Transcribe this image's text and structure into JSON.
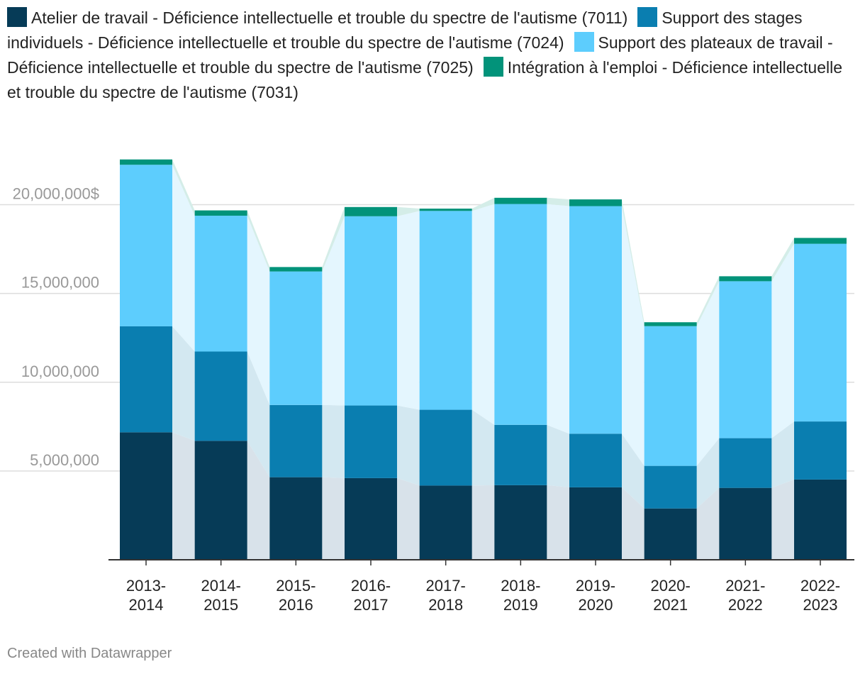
{
  "chart_data": {
    "type": "bar",
    "stacked": true,
    "categories": [
      "2013-2014",
      "2014-2015",
      "2015-2016",
      "2016-2017",
      "2017-2018",
      "2018-2019",
      "2019-2020",
      "2020-2021",
      "2021-2022",
      "2022-2023"
    ],
    "series": [
      {
        "name": "Atelier de travail - Déficience intellectuelle et trouble du spectre de l'autisme (7011)",
        "color": "#063b57",
        "values": [
          7180000,
          6700000,
          4650000,
          4600000,
          4180000,
          4200000,
          4080000,
          2890000,
          4050000,
          4520000
        ]
      },
      {
        "name": "Support des stages individuels - Déficience intellectuelle et trouble du spectre de l'autisme (7024)",
        "color": "#0a7eb0",
        "values": [
          5970000,
          5030000,
          4070000,
          4090000,
          4270000,
          3400000,
          3020000,
          2400000,
          2800000,
          3270000
        ]
      },
      {
        "name": "Support des plateaux de travail - Déficience intellectuelle et trouble du spectre de l'autisme (7025)",
        "color": "#5dcdfd",
        "values": [
          9100000,
          7650000,
          7520000,
          10660000,
          11200000,
          12440000,
          12820000,
          7870000,
          8840000,
          10010000
        ]
      },
      {
        "name": "Intégration à l'emploi - Déficience intellectuelle et trouble du spectre de l'autisme (7031)",
        "color": "#02937a",
        "values": [
          300000,
          300000,
          250000,
          520000,
          130000,
          350000,
          380000,
          220000,
          280000,
          330000
        ]
      }
    ],
    "ylim": [
      0,
      22500000
    ],
    "yticks": [
      5000000,
      10000000,
      15000000,
      20000000
    ],
    "ytick_labels": [
      "5,000,000",
      "10,000,000",
      "15,000,000",
      "20,000,000$"
    ],
    "xlabel": "",
    "ylabel": "",
    "legend_position": "top",
    "grid": true
  },
  "footer": {
    "credit": "Created with Datawrapper"
  }
}
